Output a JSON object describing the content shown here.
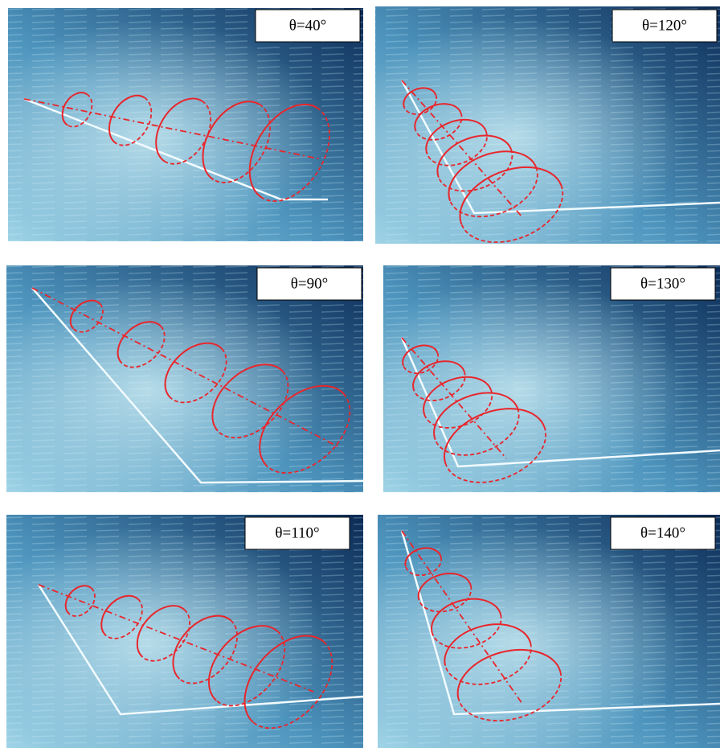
{
  "panels": [
    {
      "label": "θ=40°"
    },
    {
      "label": "θ=120°"
    },
    {
      "label": "θ=90°"
    },
    {
      "label": "θ=130°"
    },
    {
      "label": "θ=110°"
    },
    {
      "label": "θ=140°"
    }
  ]
}
